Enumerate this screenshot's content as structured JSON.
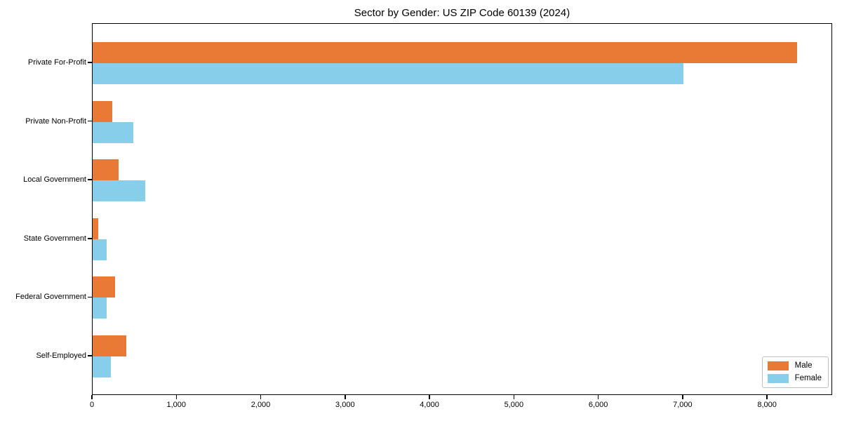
{
  "chart_data": {
    "type": "bar",
    "orientation": "horizontal",
    "title": "Sector by Gender: US ZIP Code 60139 (2024)",
    "categories": [
      "Private For-Profit",
      "Private Non-Profit",
      "Local Government",
      "State Government",
      "Federal Government",
      "Self-Employed"
    ],
    "series": [
      {
        "name": "Male",
        "color": "#e87a36",
        "values": [
          8350,
          230,
          310,
          65,
          265,
          400
        ]
      },
      {
        "name": "Female",
        "color": "#87ceeb",
        "values": [
          7000,
          480,
          620,
          165,
          165,
          215
        ]
      }
    ],
    "xlabel": "",
    "ylabel": "",
    "xlim": [
      0,
      8772
    ],
    "xticks": [
      0,
      1000,
      2000,
      3000,
      4000,
      5000,
      6000,
      7000,
      8000
    ],
    "xtick_labels": [
      "0",
      "1,000",
      "2,000",
      "3,000",
      "4,000",
      "5,000",
      "6,000",
      "7,000",
      "8,000"
    ],
    "legend": {
      "position": "lower right",
      "entries": [
        "Male",
        "Female"
      ]
    },
    "grid": false,
    "background": "#ffffff",
    "spine_color": "#000000"
  }
}
